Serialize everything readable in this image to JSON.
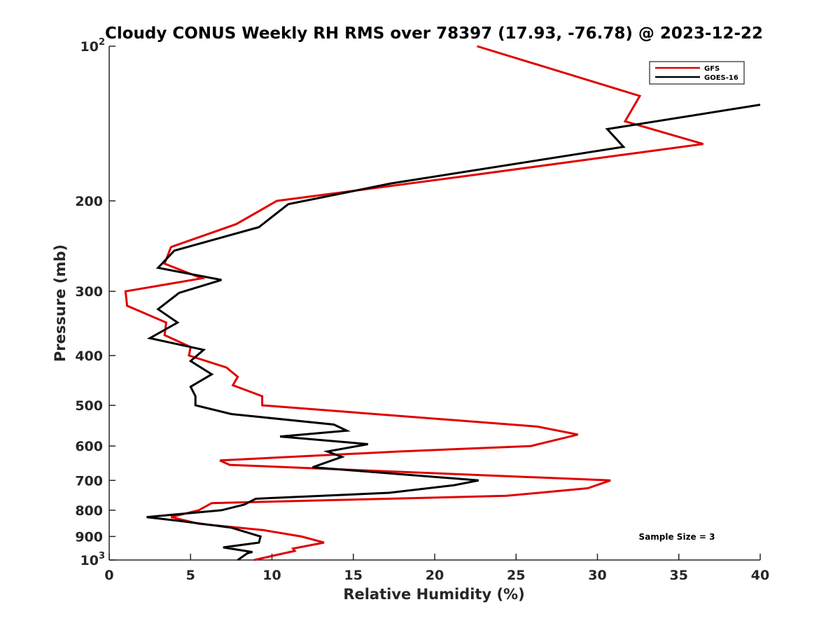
{
  "chart_data": {
    "type": "line",
    "title": "Cloudy CONUS Weekly RH RMS over 78397 (17.93, -76.78) @ 2023-12-22",
    "xlabel": "Relative Humidity (%)",
    "ylabel": "Pressure (mb)",
    "xlim": [
      0,
      40
    ],
    "ylim": [
      100,
      1000
    ],
    "y_scale": "log",
    "y_reversed": true,
    "grid": false,
    "legend_position": "top-right",
    "x_ticks": [
      "0",
      "5",
      "10",
      "15",
      "20",
      "25",
      "30",
      "35",
      "40"
    ],
    "x_tick_values": [
      0,
      5,
      10,
      15,
      20,
      25,
      30,
      35,
      40
    ],
    "y_ticks": [
      {
        "value": 100,
        "label": "10",
        "sup": "2"
      },
      {
        "value": 200,
        "label": "200",
        "sup": ""
      },
      {
        "value": 300,
        "label": "300",
        "sup": ""
      },
      {
        "value": 400,
        "label": "400",
        "sup": ""
      },
      {
        "value": 500,
        "label": "500",
        "sup": ""
      },
      {
        "value": 600,
        "label": "600",
        "sup": ""
      },
      {
        "value": 700,
        "label": "700",
        "sup": ""
      },
      {
        "value": 800,
        "label": "800",
        "sup": ""
      },
      {
        "value": 900,
        "label": "900",
        "sup": ""
      },
      {
        "value": 1000,
        "label": "10",
        "sup": "3"
      }
    ],
    "annotation": "Sample Size = 3",
    "series": [
      {
        "name": "GFS",
        "color": "#e00000",
        "points": [
          [
            22.6,
            100
          ],
          [
            32.6,
            125
          ],
          [
            31.7,
            140
          ],
          [
            36.5,
            155
          ],
          [
            21.3,
            180
          ],
          [
            10.3,
            200
          ],
          [
            7.8,
            222
          ],
          [
            3.8,
            246
          ],
          [
            3.4,
            265
          ],
          [
            5.7,
            283
          ],
          [
            1.0,
            300
          ],
          [
            1.1,
            320
          ],
          [
            3.5,
            345
          ],
          [
            3.4,
            365
          ],
          [
            5.0,
            385
          ],
          [
            4.9,
            400
          ],
          [
            7.2,
            422
          ],
          [
            7.9,
            440
          ],
          [
            7.6,
            457
          ],
          [
            9.4,
            480
          ],
          [
            9.4,
            500
          ],
          [
            26.3,
            550
          ],
          [
            28.8,
            570
          ],
          [
            25.9,
            600
          ],
          [
            17.8,
            615
          ],
          [
            6.8,
            640
          ],
          [
            7.4,
            653
          ],
          [
            30.8,
            700
          ],
          [
            29.4,
            725
          ],
          [
            24.4,
            750
          ],
          [
            6.3,
            775
          ],
          [
            5.5,
            800
          ],
          [
            3.8,
            825
          ],
          [
            5.5,
            850
          ],
          [
            9.5,
            875
          ],
          [
            11.8,
            900
          ],
          [
            13.2,
            925
          ],
          [
            11.3,
            950
          ],
          [
            11.4,
            960
          ],
          [
            8.9,
            1000
          ]
        ]
      },
      {
        "name": "GOES-16",
        "color": "#000000",
        "points": [
          [
            40.0,
            130
          ],
          [
            30.6,
            145
          ],
          [
            31.6,
            157
          ],
          [
            17.3,
            185
          ],
          [
            11.0,
            203
          ],
          [
            9.2,
            225
          ],
          [
            4.0,
            250
          ],
          [
            3.0,
            270
          ],
          [
            6.9,
            285
          ],
          [
            4.3,
            302
          ],
          [
            3.0,
            325
          ],
          [
            4.2,
            345
          ],
          [
            2.5,
            370
          ],
          [
            5.8,
            390
          ],
          [
            5.0,
            410
          ],
          [
            6.3,
            435
          ],
          [
            5.0,
            460
          ],
          [
            5.3,
            480
          ],
          [
            5.3,
            500
          ],
          [
            7.5,
            520
          ],
          [
            13.8,
            545
          ],
          [
            14.6,
            560
          ],
          [
            10.5,
            575
          ],
          [
            15.9,
            595
          ],
          [
            13.4,
            615
          ],
          [
            14.3,
            630
          ],
          [
            12.5,
            660
          ],
          [
            22.7,
            700
          ],
          [
            21.2,
            715
          ],
          [
            17.2,
            740
          ],
          [
            9.0,
            760
          ],
          [
            8.3,
            780
          ],
          [
            6.9,
            800
          ],
          [
            2.3,
            825
          ],
          [
            4.4,
            840
          ],
          [
            7.5,
            865
          ],
          [
            9.3,
            900
          ],
          [
            9.2,
            925
          ],
          [
            7.0,
            945
          ],
          [
            8.8,
            965
          ],
          [
            8.5,
            970
          ],
          [
            7.9,
            1000
          ]
        ]
      }
    ]
  }
}
